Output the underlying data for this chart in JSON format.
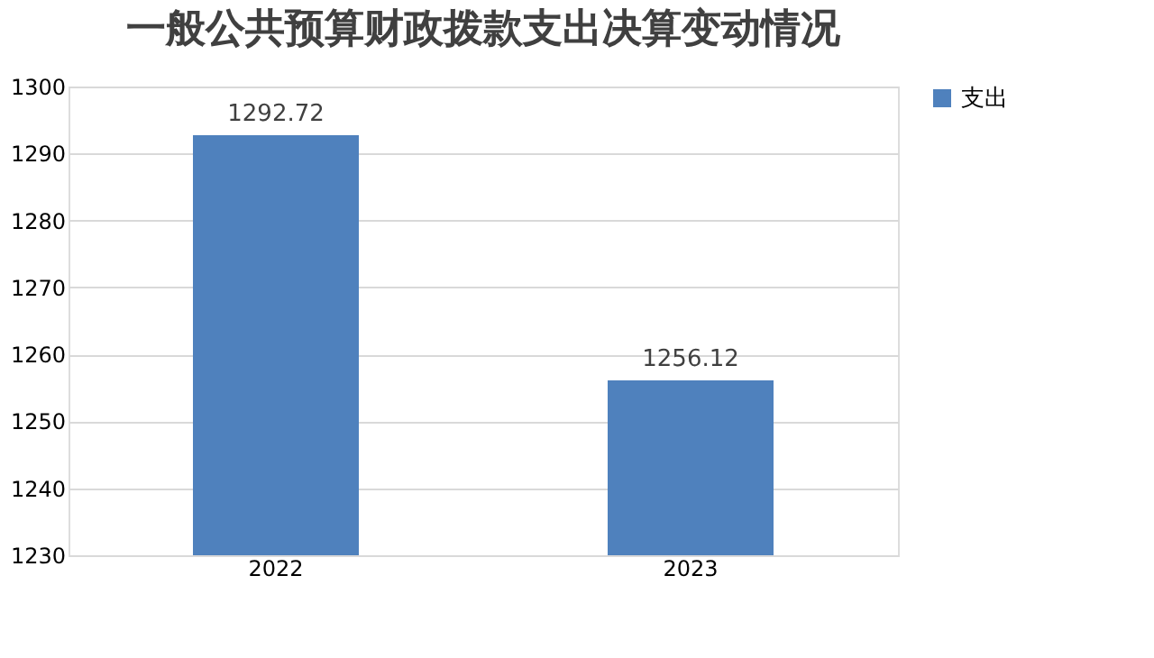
{
  "chart_data": {
    "type": "bar",
    "title": "一般公共预算财政拨款支出决算变动情况",
    "categories": [
      "2022",
      "2023"
    ],
    "series": [
      {
        "name": "支出",
        "color": "#4f81bd",
        "values": [
          1292.72,
          1256.12
        ]
      }
    ],
    "ylim": [
      1230,
      1300
    ],
    "yticks": [
      1230,
      1240,
      1250,
      1260,
      1270,
      1280,
      1290,
      1300
    ],
    "grid": "y",
    "legend": "right",
    "data_labels": true
  }
}
